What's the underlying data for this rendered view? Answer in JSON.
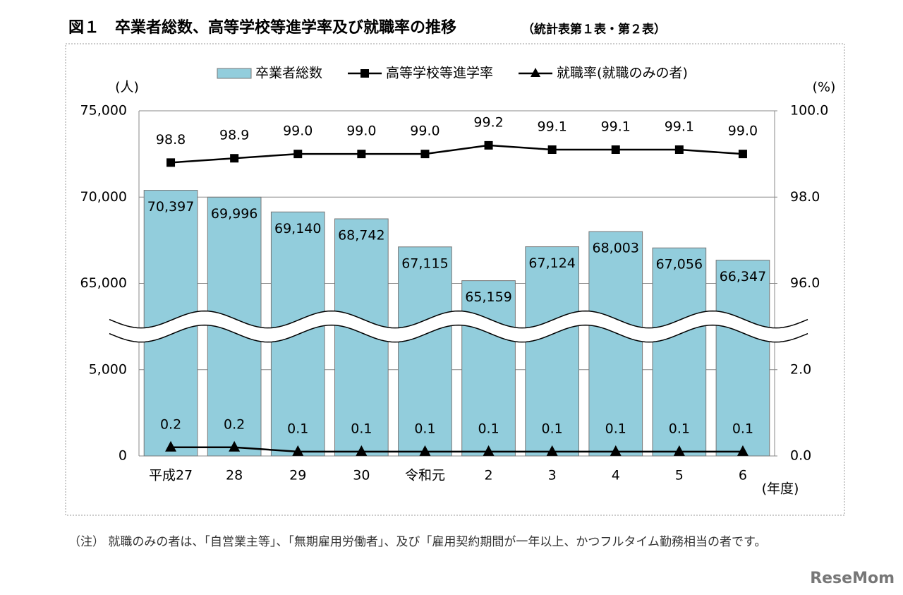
{
  "chart_data": {
    "type": "bar-line",
    "title": "図１　卒業者総数、高等学校等進学率及び就職率の推移",
    "subtitle": "（統計表第１表・第２表）",
    "y_label": "(人)",
    "y2_label": "(%)",
    "x_label": "(年度)",
    "categories": [
      "平成27",
      "28",
      "29",
      "30",
      "令和元",
      "2",
      "3",
      "4",
      "5",
      "6"
    ],
    "series": [
      {
        "name": "卒業者総数",
        "type": "bar",
        "color": "#92cddc",
        "values": [
          70397,
          69996,
          69140,
          68742,
          67115,
          65159,
          67124,
          68003,
          67056,
          66347
        ],
        "value_labels": [
          "70,397",
          "69,996",
          "69,140",
          "68,742",
          "67,115",
          "65,159",
          "67,124",
          "68,003",
          "67,056",
          "66,347"
        ]
      },
      {
        "name": "高等学校等進学率",
        "type": "line",
        "marker": "square",
        "axis": "y2",
        "color": "#000000",
        "values": [
          98.8,
          98.9,
          99.0,
          99.0,
          99.0,
          99.2,
          99.1,
          99.1,
          99.1,
          99.0
        ],
        "value_labels": [
          "98.8",
          "98.9",
          "99.0",
          "99.0",
          "99.0",
          "99.2",
          "99.1",
          "99.1",
          "99.1",
          "99.0"
        ]
      },
      {
        "name": "就職率(就職のみの者)",
        "type": "line",
        "marker": "triangle",
        "axis": "y2",
        "color": "#000000",
        "values": [
          0.2,
          0.2,
          0.1,
          0.1,
          0.1,
          0.1,
          0.1,
          0.1,
          0.1,
          0.1
        ]
      }
    ],
    "ylim": [
      0,
      75000
    ],
    "y_break": [
      5000,
      65000
    ],
    "yticks": [
      0,
      {
        "value": 5000,
        "label": "5,000"
      },
      {
        "value": 65000,
        "label": "65,000"
      },
      {
        "value": 70000,
        "label": "70,000"
      },
      {
        "value": 75000,
        "label": "75,000"
      }
    ],
    "y2lim": [
      0,
      100
    ],
    "y2_break": [
      2,
      96
    ],
    "y2ticks": [
      {
        "value": 0,
        "label": "0.0"
      },
      {
        "value": 2,
        "label": "2.0"
      },
      {
        "value": 96,
        "label": "96.0"
      },
      {
        "value": 98,
        "label": "98.0"
      },
      {
        "value": 100,
        "label": "100.0"
      }
    ],
    "grid": true,
    "legend": "top",
    "note": "（注）  就職のみの者は、「自営業主等」、「無期雇用労働者」、及び「雇用契約期間が一年以上、かつフルタイム勤務相当の者です。",
    "watermark": "ReseMom"
  }
}
